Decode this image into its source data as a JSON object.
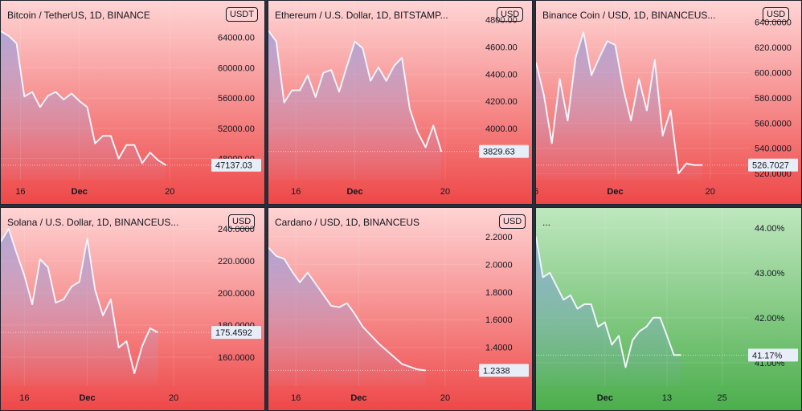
{
  "chart_data": [
    {
      "type": "area",
      "title": "Bitcoin / TetherUS, 1D, BINANCE",
      "currency": "USDT",
      "trend": "down",
      "yticks": [
        "64000.00",
        "60000.00",
        "56000.00",
        "52000.00",
        "48000.00"
      ],
      "ytick_values": [
        64000,
        60000,
        56000,
        52000,
        48000
      ],
      "ylim": [
        45200,
        66500
      ],
      "xticks": [
        {
          "label": "16",
          "x": 4.5
        },
        {
          "label": "Dec",
          "x": 12,
          "bold": true
        },
        {
          "label": "20",
          "x": 23.5
        }
      ],
      "xlim": [
        2,
        29
      ],
      "last_value": 47137.03,
      "last_label": "47137.03",
      "x": [
        2,
        3,
        4,
        5,
        6,
        7,
        8,
        9,
        10,
        11,
        12,
        13,
        14,
        15,
        16,
        17,
        18,
        19,
        20,
        21,
        22,
        23
      ],
      "y": [
        64800,
        64200,
        63200,
        56200,
        56800,
        54800,
        56300,
        56800,
        55800,
        56600,
        55600,
        54800,
        50000,
        51000,
        51000,
        48000,
        49800,
        49800,
        47400,
        48800,
        47800,
        47137
      ]
    },
    {
      "type": "area",
      "title": "Ethereum / U.S. Dollar, 1D, BITSTAMP...",
      "currency": "USD",
      "trend": "down",
      "yticks": [
        "4800.00",
        "4600.00",
        "4400.00",
        "4200.00",
        "4000.00"
      ],
      "ytick_values": [
        4800,
        4600,
        4400,
        4200,
        4000
      ],
      "ylim": [
        3620,
        4810
      ],
      "xticks": [
        {
          "label": "16",
          "x": 5.5
        },
        {
          "label": "Dec",
          "x": 13,
          "bold": true
        },
        {
          "label": "20",
          "x": 24.5
        }
      ],
      "xlim": [
        2,
        29
      ],
      "last_value": 3829.63,
      "last_label": "3829.63",
      "x": [
        2,
        3,
        4,
        5,
        6,
        7,
        8,
        9,
        10,
        11,
        12,
        13,
        14,
        15,
        16,
        17,
        18,
        19,
        20,
        21,
        22,
        23,
        24
      ],
      "y": [
        4720,
        4640,
        4190,
        4280,
        4280,
        4390,
        4230,
        4410,
        4430,
        4270,
        4460,
        4640,
        4590,
        4350,
        4450,
        4350,
        4460,
        4520,
        4140,
        3970,
        3860,
        4020,
        3829.63
      ]
    },
    {
      "type": "area",
      "title": "Binance Coin / USD, 1D, BINANCEUS...",
      "currency": "USD",
      "trend": "down",
      "yticks": [
        "640.0000",
        "620.0000",
        "600.0000",
        "580.0000",
        "560.0000",
        "540.0000",
        "520.0000"
      ],
      "ytick_values": [
        640,
        620,
        600,
        580,
        560,
        540,
        520
      ],
      "ylim": [
        515,
        643
      ],
      "xticks": [
        {
          "label": "6",
          "x": 0
        },
        {
          "label": "Dec",
          "x": 10,
          "bold": true
        },
        {
          "label": "20",
          "x": 22
        }
      ],
      "xlim": [
        0,
        27
      ],
      "last_value": 526.7027,
      "last_label": "526.7027",
      "x": [
        0,
        1,
        2,
        3,
        4,
        5,
        6,
        7,
        8,
        9,
        10,
        11,
        12,
        13,
        14,
        15,
        16,
        17,
        18,
        19,
        20,
        21
      ],
      "y": [
        608,
        582,
        544,
        595,
        562,
        612,
        632,
        598,
        612,
        625,
        622,
        588,
        562,
        595,
        570,
        610,
        550,
        570,
        520,
        528,
        526.7,
        526.7
      ]
    },
    {
      "type": "area",
      "title": "Solana / U.S. Dollar, 1D, BINANCEUS...",
      "currency": "USD",
      "trend": "down",
      "yticks": [
        "240.0000",
        "220.0000",
        "200.0000",
        "180.0000",
        "160.0000"
      ],
      "ytick_values": [
        240,
        220,
        200,
        180,
        160
      ],
      "ylim": [
        142,
        242
      ],
      "xticks": [
        {
          "label": "16",
          "x": 3
        },
        {
          "label": "Dec",
          "x": 11,
          "bold": true
        },
        {
          "label": "20",
          "x": 22
        }
      ],
      "xlim": [
        0,
        27
      ],
      "last_value": 175.4592,
      "last_label": "175.4592",
      "x": [
        0,
        1,
        2,
        3,
        4,
        5,
        6,
        7,
        8,
        9,
        10,
        11,
        12,
        13,
        14,
        15,
        16,
        17,
        18,
        19,
        20
      ],
      "y": [
        232,
        240,
        225,
        211,
        193,
        221,
        216,
        194,
        196,
        204,
        207,
        234,
        202,
        186,
        196,
        166,
        170,
        150,
        167,
        178,
        175.46
      ]
    },
    {
      "type": "area",
      "title": "Cardano / USD, 1D, BINANCEUS",
      "currency": "USD",
      "trend": "down",
      "yticks": [
        "2.2000",
        "2.0000",
        "1.8000",
        "1.6000",
        "1.4000"
      ],
      "ytick_values": [
        2.2,
        2.0,
        1.8,
        1.6,
        1.4
      ],
      "ylim": [
        1.12,
        2.28
      ],
      "xticks": [
        {
          "label": "16",
          "x": 3.5
        },
        {
          "label": "Dec",
          "x": 11.5,
          "bold": true
        },
        {
          "label": "20",
          "x": 22.5
        }
      ],
      "xlim": [
        0,
        27
      ],
      "last_value": 1.2338,
      "last_label": "1.2338",
      "x": [
        0,
        1,
        2,
        3,
        4,
        5,
        6,
        7,
        8,
        9,
        10,
        11,
        12,
        13,
        14,
        15,
        16,
        17,
        18,
        19,
        20
      ],
      "y": [
        2.12,
        2.06,
        2.04,
        1.95,
        1.87,
        1.94,
        1.86,
        1.78,
        1.7,
        1.69,
        1.72,
        1.64,
        1.55,
        1.49,
        1.43,
        1.38,
        1.33,
        1.28,
        1.26,
        1.24,
        1.2338
      ]
    },
    {
      "type": "area",
      "title": "...",
      "currency": "",
      "trend": "up",
      "yticks": [
        "44.00%",
        "43.00%",
        "42.00%",
        "41.00%"
      ],
      "ytick_values": [
        44.0,
        43.0,
        42.0,
        41.0
      ],
      "ylim": [
        40.48,
        44.05
      ],
      "xticks": [
        {
          "label": "Dec",
          "x": 10,
          "bold": true
        },
        {
          "label": "13",
          "x": 19
        },
        {
          "label": "25",
          "x": 27
        }
      ],
      "xlim": [
        0,
        31
      ],
      "last_value": 41.17,
      "last_label": "41.17%",
      "x": [
        0,
        1,
        2,
        3,
        4,
        5,
        6,
        7,
        8,
        9,
        10,
        11,
        12,
        13,
        14,
        15,
        16,
        17,
        18,
        19,
        20,
        21
      ],
      "y": [
        43.8,
        42.9,
        43.0,
        42.7,
        42.4,
        42.5,
        42.2,
        42.3,
        42.3,
        41.8,
        41.9,
        41.4,
        41.6,
        40.9,
        41.5,
        41.7,
        41.8,
        42.0,
        42.0,
        41.6,
        41.17,
        41.17
      ]
    }
  ]
}
